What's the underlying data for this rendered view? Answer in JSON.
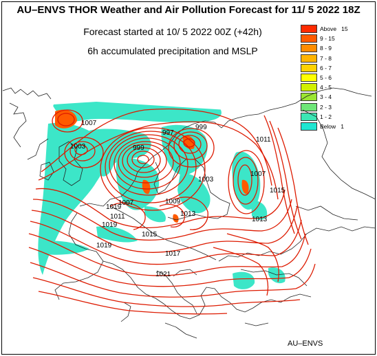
{
  "title": "AU–ENVS THOR Weather and Air Pollution Forecast for 11/ 5 2022  18Z",
  "subtitle": "Forecast started at 10/ 5 2022  00Z (+42h)",
  "product": "6h accumulated precipitation and MSLP",
  "footer": "AU–ENVS",
  "legend": [
    {
      "label": "Above   15",
      "color": "#ff2a00"
    },
    {
      "label": "9 - 15",
      "color": "#ff5a00"
    },
    {
      "label": "8 - 9",
      "color": "#ff8c00"
    },
    {
      "label": "7 - 8",
      "color": "#ffb400"
    },
    {
      "label": "6 - 7",
      "color": "#ffd200"
    },
    {
      "label": "5 - 6",
      "color": "#ffff00"
    },
    {
      "label": "4 - 5",
      "color": "#d2f000"
    },
    {
      "label": "3 - 4",
      "color": "#9be632"
    },
    {
      "label": "2 - 3",
      "color": "#6ee678"
    },
    {
      "label": "1 - 2",
      "color": "#3ce6b4"
    },
    {
      "label": "Below   1",
      "color": "#1ee6d2"
    }
  ],
  "isobar_labels": [
    "1003",
    "1007",
    "999",
    "997",
    "999",
    "1003",
    "1011",
    "1007",
    "1015",
    "1007",
    "1009",
    "1019",
    "1013",
    "1011",
    "1019",
    "1015",
    "1017",
    "1021",
    "1013",
    "1019"
  ],
  "colors": {
    "isobar": "#dd1a00",
    "coast": "#222222",
    "precip_light": "#3ce6c8",
    "precip_heavy": "#ff5a00"
  }
}
